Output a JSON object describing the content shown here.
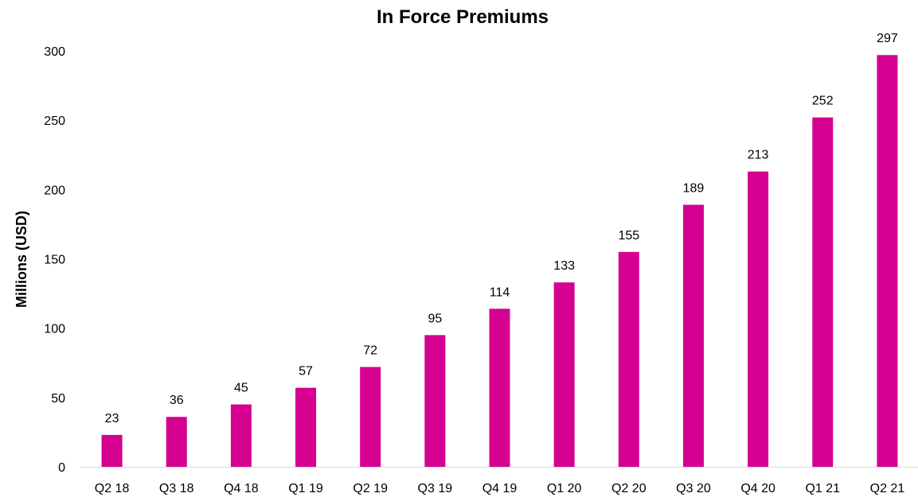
{
  "chart_data": {
    "type": "bar",
    "title": "In Force Premiums",
    "xlabel": "",
    "ylabel": "Millions (USD)",
    "categories": [
      "Q2 18",
      "Q3 18",
      "Q4 18",
      "Q1 19",
      "Q2 19",
      "Q3 19",
      "Q4 19",
      "Q1 20",
      "Q2 20",
      "Q3 20",
      "Q4 20",
      "Q1 21",
      "Q2 21"
    ],
    "values": [
      23,
      36,
      45,
      57,
      72,
      95,
      114,
      133,
      155,
      189,
      213,
      252,
      297
    ],
    "ylim": [
      0,
      300
    ],
    "yticks": [
      0,
      50,
      100,
      150,
      200,
      250,
      300
    ],
    "grid": false,
    "legend": "none",
    "data_labels": true,
    "bar_color": "#D5008F"
  }
}
